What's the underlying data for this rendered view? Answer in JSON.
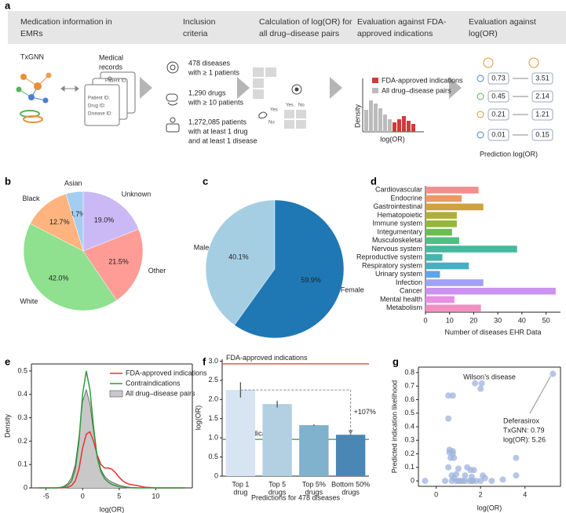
{
  "panel_labels": [
    "a",
    "b",
    "c",
    "d",
    "e",
    "f",
    "g"
  ],
  "diagram": {
    "headers": [
      [
        "Medication information in",
        "EMRs"
      ],
      [
        "Inclusion",
        "criteria"
      ],
      [
        "Calculation of log(OR) for",
        "all drug–disease pairs"
      ],
      [
        "Evaluation against FDA-",
        "approved indications"
      ],
      [
        "Evaluation against",
        "log(OR)"
      ]
    ],
    "txgnn": "TxGNN",
    "records_label": [
      "Medical",
      "records"
    ],
    "record_fields": [
      "Patient ID:",
      "Drug ID:",
      "Disease ID:"
    ],
    "criteria": [
      [
        "478 diseases",
        "with ≥ 1 patients"
      ],
      [
        "1,290 drugs",
        "with ≥ 10 patients"
      ],
      [
        "1,272,085 patients",
        "with at least 1 drug",
        "and at least 1 disease"
      ]
    ],
    "matrix_labels": [
      "Yes",
      "No"
    ],
    "hand_labels": [
      "Yes",
      "No"
    ],
    "legend": [
      "FDA-approved indications",
      "All drug–disease pairs"
    ],
    "mini_axes": [
      "Density",
      "log(OR)"
    ],
    "predicted": [
      0.73,
      0.45,
      0.21,
      0.01
    ],
    "observed": [
      3.51,
      2.14,
      1.21,
      0.15
    ],
    "prediction_label": "Prediction log(OR)"
  },
  "chart_data": [
    {
      "type": "pie",
      "categories": [
        "Asian",
        "Black",
        "White",
        "Other",
        "Unknown"
      ],
      "values": [
        4.7,
        12.7,
        42.0,
        21.5,
        19.0
      ],
      "value_labels": [
        "4.7%",
        "12.7%",
        "42.0%",
        "21.5%",
        "19.0%"
      ],
      "colors": [
        "#a4cdf2",
        "#ffb47f",
        "#8fe08f",
        "#ff9c96",
        "#cbb9f6"
      ],
      "start_angle": 90,
      "direction": "counterclockwise"
    },
    {
      "type": "pie",
      "categories": [
        "Male",
        "Female"
      ],
      "values": [
        40.1,
        59.9
      ],
      "value_labels": [
        "40.1%",
        "59.9%"
      ],
      "colors": [
        "#a6cee3",
        "#1f78b4"
      ],
      "start_angle": 90,
      "direction": "counterclockwise"
    },
    {
      "type": "bar",
      "horizontal": true,
      "x_label": "Number of diseases EHR Data",
      "categories": [
        "Cardiovascular",
        "Endocrine",
        "Gastrointestinal",
        "Hematopoietic",
        "Immune system",
        "Integumentary",
        "Musculoskeletal",
        "Nervous system",
        "Reproductive system",
        "Respiratory system",
        "Urinary system",
        "Infection",
        "Cancer",
        "Mental health",
        "Metabolism"
      ],
      "values": [
        22,
        15,
        24,
        13,
        13,
        11,
        14,
        38,
        7,
        18,
        6,
        24,
        54,
        12,
        23
      ],
      "colors": [
        "#f28e8e",
        "#eb9a64",
        "#cda23f",
        "#b0ad3d",
        "#94b63e",
        "#6cbd4d",
        "#4fbf84",
        "#45b99e",
        "#45b5ae",
        "#47afc3",
        "#5da6e4",
        "#a3a1f3",
        "#cb92f0",
        "#e78fe2",
        "#f18fc0"
      ],
      "xlim": [
        0,
        56
      ],
      "xticks": [
        0,
        10,
        20,
        30,
        40,
        50
      ]
    },
    {
      "type": "line",
      "x_label": "log(OR)",
      "y_label": "Density",
      "legend": "upper right",
      "x": [
        -6,
        -5.5,
        -5,
        -4.5,
        -4,
        -3.5,
        -3,
        -2.5,
        -2,
        -1.5,
        -1,
        -0.5,
        0,
        0.5,
        1,
        1.5,
        2,
        2.5,
        3,
        3.5,
        4,
        4.5,
        5,
        5.5,
        6,
        6.5,
        7,
        7.5,
        8,
        8.5,
        9,
        9.5,
        10,
        10.5,
        11,
        11.5,
        12,
        12.5,
        13,
        13.5,
        14
      ],
      "series": [
        {
          "name": "FDA-approved indications",
          "color": "#e8312f",
          "values": [
            0,
            0,
            0,
            0,
            0,
            0,
            0,
            0.001,
            0.003,
            0.01,
            0.03,
            0.08,
            0.17,
            0.23,
            0.24,
            0.2,
            0.14,
            0.1,
            0.085,
            0.085,
            0.08,
            0.065,
            0.045,
            0.03,
            0.02,
            0.015,
            0.012,
            0.01,
            0.006,
            0.003,
            0.002,
            0.001,
            0,
            0,
            0,
            0,
            0,
            0,
            0,
            0,
            0
          ]
        },
        {
          "name": "Contraindications",
          "color": "#2e9a3a",
          "values": [
            0,
            0,
            0,
            0,
            0,
            0,
            0.002,
            0.005,
            0.012,
            0.03,
            0.08,
            0.2,
            0.4,
            0.5,
            0.42,
            0.26,
            0.13,
            0.07,
            0.04,
            0.025,
            0.015,
            0.01,
            0.005,
            0.003,
            0.002,
            0.001,
            0,
            0,
            0,
            0,
            0,
            0,
            0,
            0,
            0,
            0,
            0,
            0,
            0,
            0,
            0
          ]
        },
        {
          "name": "All drug–disease pairs",
          "color": "#c8c8c8",
          "area": true,
          "values": [
            0,
            0,
            0,
            0,
            0,
            0.001,
            0.003,
            0.008,
            0.02,
            0.045,
            0.1,
            0.22,
            0.37,
            0.42,
            0.36,
            0.24,
            0.14,
            0.08,
            0.05,
            0.035,
            0.025,
            0.018,
            0.012,
            0.008,
            0.005,
            0.003,
            0.002,
            0.001,
            0,
            0,
            0,
            0,
            0,
            0,
            0,
            0,
            0,
            0,
            0,
            0,
            0
          ]
        }
      ],
      "xlim": [
        -7,
        15
      ],
      "xticks": [
        -5,
        0,
        5,
        10
      ],
      "ylim": [
        0,
        0.53
      ],
      "yticks": [
        0,
        0.1,
        0.2,
        0.3,
        0.4,
        0.5
      ]
    },
    {
      "type": "bar",
      "x_label": "Predictions for 478 diseases",
      "y_label": "log(OR)",
      "categories": [
        [
          "Top 1",
          "drug"
        ],
        [
          "Top 5",
          "drugs"
        ],
        [
          "Top 5%",
          "drugs"
        ],
        [
          "Bottom 50%",
          "drugs"
        ]
      ],
      "values": [
        2.25,
        1.88,
        1.33,
        1.08
      ],
      "errors": [
        0.2,
        0.09,
        0.02,
        0.01
      ],
      "colors": [
        "#d6e5f1",
        "#b3cfe2",
        "#80b1cd",
        "#4a87b5"
      ],
      "hlines": [
        {
          "label": "FDA-approved indications",
          "value": 2.93,
          "color": "#e8312f"
        },
        {
          "label": "Contraindications",
          "value": 0.96,
          "color": "#2e9a3a"
        }
      ],
      "annotation": "+107%",
      "ylim": [
        0,
        3.05
      ],
      "yticks": [
        0,
        0.5,
        {
          "value": 1,
          "label": "1.0"
        },
        1.5,
        {
          "value": 2,
          "label": "2.0"
        },
        2.5,
        {
          "value": 3,
          "label": "3.0"
        }
      ]
    },
    {
      "type": "scatter",
      "title": "Wilson’s disease",
      "x_label": "log(OR)",
      "y_label": "Predicted indication likelihood",
      "annotation": [
        "Deferasirox",
        "TxGNN: 0.79",
        "log(OR): 5.26"
      ],
      "color": "#9fb3de",
      "x": [
        5.26,
        0.55,
        0.75,
        1.75,
        2.05,
        2.0,
        0.55,
        0.6,
        0.6,
        0.75,
        0.75,
        0.65,
        0.8,
        0.55,
        3.6,
        1.4,
        1.55,
        1.7,
        1.0,
        0.9,
        0.7,
        0.8,
        1.3,
        1.6,
        2.1,
        2.2,
        3.6,
        3.0,
        -0.5,
        0.4,
        0.7,
        1.0,
        1.1,
        1.2,
        1.5,
        1.6,
        1.65,
        1.8,
        2.0,
        2.5,
        0.9,
        1.3
      ],
      "y": [
        0.79,
        0.63,
        0.63,
        0.72,
        0.72,
        0.68,
        0.46,
        0.23,
        0.21,
        0.22,
        0.2,
        0.17,
        0.17,
        0.1,
        0.17,
        0.1,
        0.08,
        0.08,
        0.09,
        0.05,
        0.04,
        0.02,
        0.04,
        0.03,
        0.04,
        0.02,
        0.04,
        0.01,
        0,
        0,
        0,
        0,
        0,
        0,
        0,
        0,
        0,
        0,
        0,
        0,
        0,
        0
      ],
      "xlim": [
        -0.8,
        5.6
      ],
      "xticks": [
        0,
        2,
        4
      ],
      "ylim": [
        -0.04,
        0.84
      ],
      "yticks": [
        0,
        0.1,
        0.2,
        0.3,
        0.4,
        0.5,
        0.6,
        0.7,
        0.8
      ]
    }
  ]
}
